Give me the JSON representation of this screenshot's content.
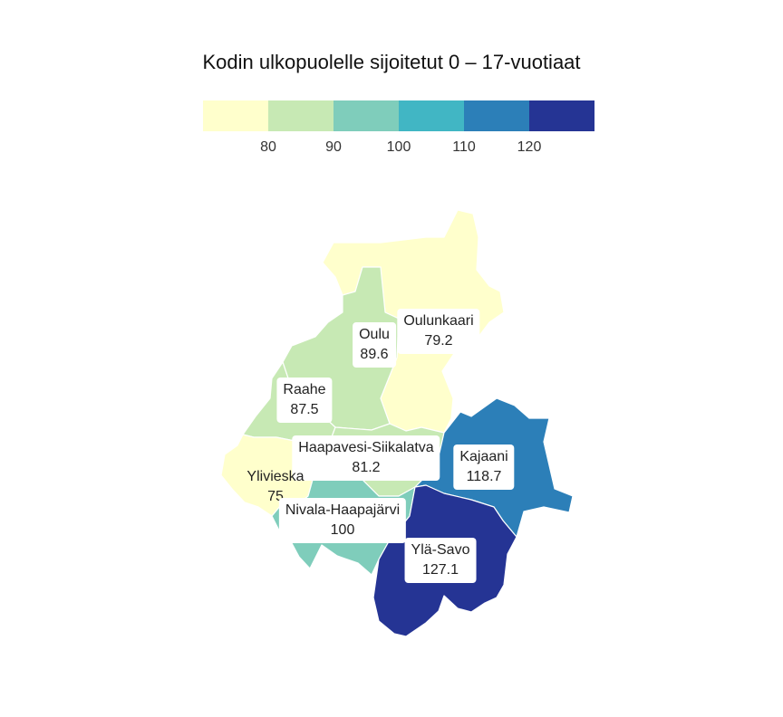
{
  "title": "Kodin ulkopuolelle sijoitetut 0 – 17-vuotiaat",
  "legend": {
    "colors": [
      "#ffffcc",
      "#c7e9b4",
      "#7fcdbb",
      "#41b6c4",
      "#2c7fb8",
      "#253494"
    ],
    "thresholds": [
      "80",
      "90",
      "100",
      "110",
      "120"
    ]
  },
  "regions": [
    {
      "name": "Oulunkaari",
      "value": "79.2",
      "color": "#ffffcc"
    },
    {
      "name": "Oulu",
      "value": "89.6",
      "color": "#c7e9b4"
    },
    {
      "name": "Raahe",
      "value": "87.5",
      "color": "#c7e9b4"
    },
    {
      "name": "Haapavesi-Siikalatva",
      "value": "81.2",
      "color": "#c7e9b4"
    },
    {
      "name": "Kajaani",
      "value": "118.7",
      "color": "#2c7fb8"
    },
    {
      "name": "Ylivieska",
      "value": "75",
      "color": "#ffffcc"
    },
    {
      "name": "Nivala-Haapajärvi",
      "value": "100",
      "color": "#7fcdbb"
    },
    {
      "name": "Ylä-Savo",
      "value": "127.1",
      "color": "#253494"
    }
  ]
}
